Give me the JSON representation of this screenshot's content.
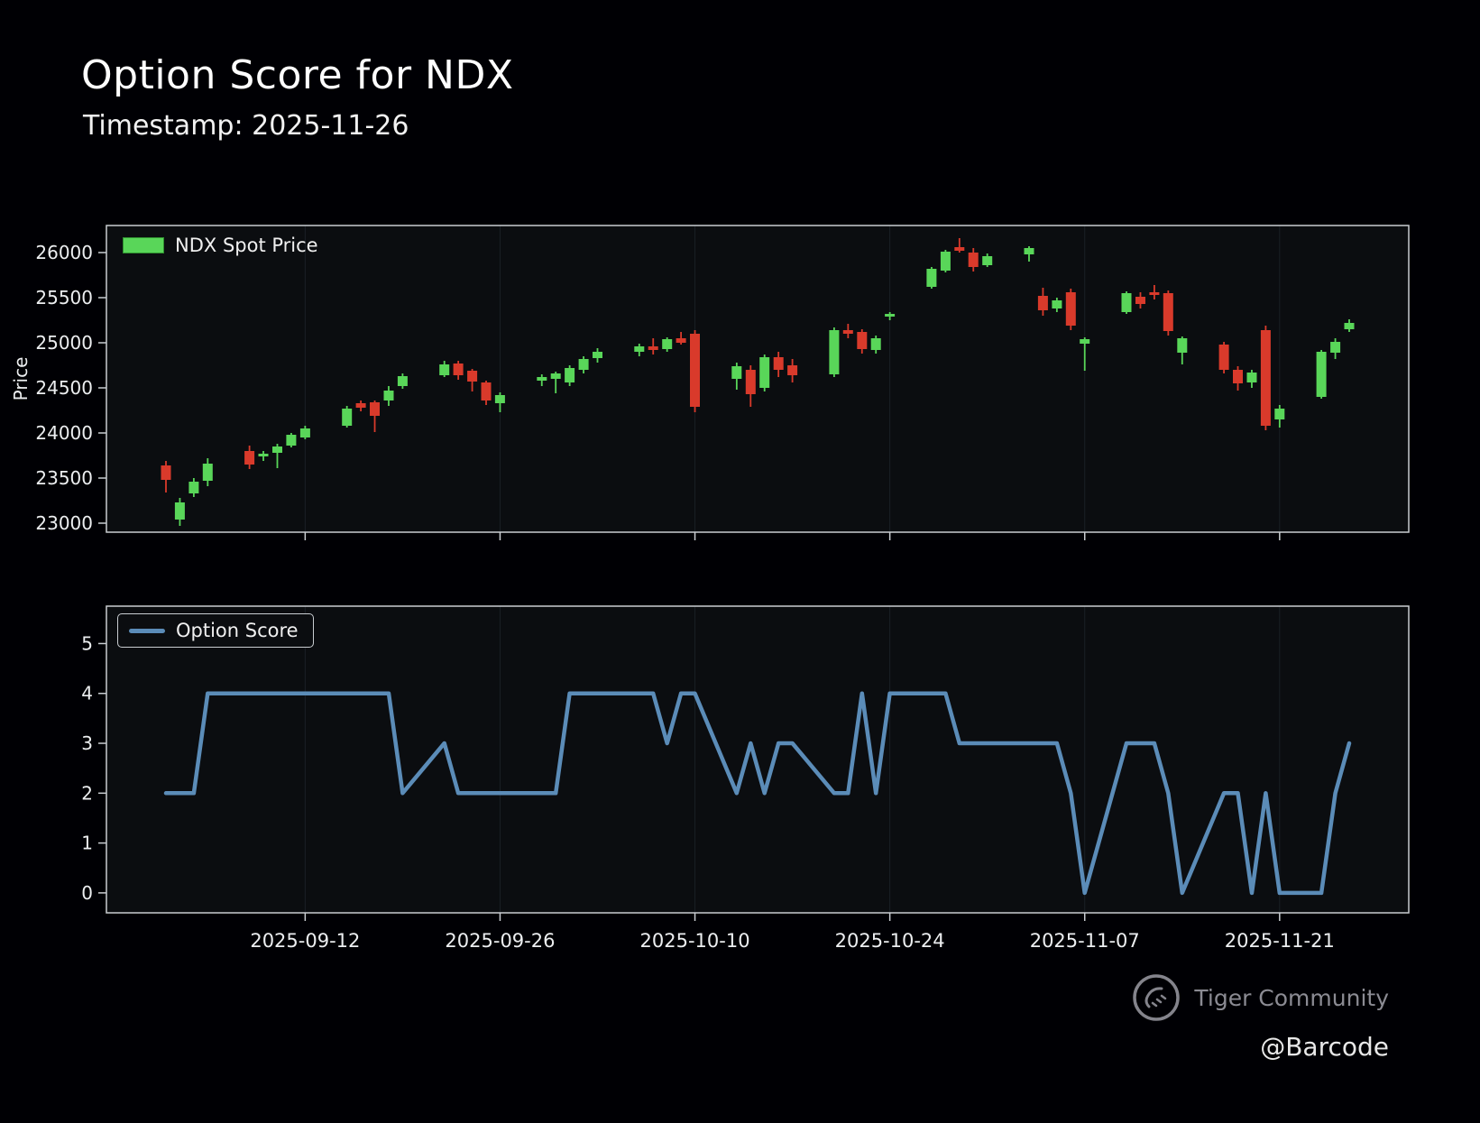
{
  "header": {
    "title": "Option Score for NDX",
    "subtitle": "Timestamp: 2025-11-26"
  },
  "watermark": {
    "community": "Tiger Community",
    "handle": "@Barcode"
  },
  "x_axis": {
    "tick_labels": [
      "2025-09-12",
      "2025-09-26",
      "2025-10-10",
      "2025-10-24",
      "2025-11-07",
      "2025-11-21"
    ]
  },
  "chart_data": [
    {
      "type": "candlestick",
      "name": "NDX Spot Price",
      "legend": "NDX Spot Price",
      "ylabel": "Price",
      "ylim": [
        22900,
        26300
      ],
      "yticks": [
        23000,
        23500,
        24000,
        24500,
        25000,
        25500,
        26000
      ],
      "up_color": "#59d659",
      "down_color": "#d93a2b",
      "grid": "vertical-faint",
      "candles": [
        [
          "2025-09-02",
          23640,
          23690,
          23340,
          23480
        ],
        [
          "2025-09-03",
          23040,
          23280,
          22970,
          23230
        ],
        [
          "2025-09-04",
          23330,
          23500,
          23290,
          23460
        ],
        [
          "2025-09-05",
          23470,
          23720,
          23410,
          23660
        ],
        [
          "2025-09-08",
          23800,
          23860,
          23600,
          23650
        ],
        [
          "2025-09-09",
          23740,
          23800,
          23690,
          23770
        ],
        [
          "2025-09-10",
          23780,
          23880,
          23610,
          23850
        ],
        [
          "2025-09-11",
          23860,
          24000,
          23840,
          23980
        ],
        [
          "2025-09-12",
          23950,
          24080,
          23930,
          24050
        ],
        [
          "2025-09-15",
          24080,
          24300,
          24060,
          24270
        ],
        [
          "2025-09-16",
          24330,
          24360,
          24240,
          24280
        ],
        [
          "2025-09-17",
          24340,
          24360,
          24010,
          24190
        ],
        [
          "2025-09-18",
          24360,
          24520,
          24300,
          24470
        ],
        [
          "2025-09-19",
          24520,
          24660,
          24490,
          24630
        ],
        [
          "2025-09-22",
          24640,
          24800,
          24620,
          24760
        ],
        [
          "2025-09-23",
          24770,
          24800,
          24590,
          24640
        ],
        [
          "2025-09-24",
          24690,
          24710,
          24460,
          24570
        ],
        [
          "2025-09-25",
          24560,
          24580,
          24310,
          24360
        ],
        [
          "2025-09-26",
          24330,
          24450,
          24230,
          24420
        ],
        [
          "2025-09-29",
          24580,
          24650,
          24520,
          24620
        ],
        [
          "2025-09-30",
          24600,
          24680,
          24440,
          24660
        ],
        [
          "2025-10-01",
          24560,
          24750,
          24520,
          24720
        ],
        [
          "2025-10-02",
          24700,
          24850,
          24660,
          24820
        ],
        [
          "2025-10-03",
          24830,
          24940,
          24780,
          24900
        ],
        [
          "2025-10-06",
          24900,
          24990,
          24850,
          24960
        ],
        [
          "2025-10-07",
          24960,
          25050,
          24870,
          24920
        ],
        [
          "2025-10-08",
          24930,
          25060,
          24900,
          25040
        ],
        [
          "2025-10-09",
          25050,
          25120,
          24980,
          25000
        ],
        [
          "2025-10-10",
          25100,
          25140,
          24230,
          24290
        ],
        [
          "2025-10-13",
          24600,
          24780,
          24480,
          24740
        ],
        [
          "2025-10-14",
          24700,
          24750,
          24290,
          24430
        ],
        [
          "2025-10-15",
          24500,
          24870,
          24460,
          24840
        ],
        [
          "2025-10-16",
          24840,
          24900,
          24620,
          24700
        ],
        [
          "2025-10-17",
          24750,
          24820,
          24560,
          24640
        ],
        [
          "2025-10-20",
          24650,
          25170,
          24620,
          25140
        ],
        [
          "2025-10-21",
          25140,
          25210,
          25050,
          25100
        ],
        [
          "2025-10-22",
          25120,
          25150,
          24880,
          24930
        ],
        [
          "2025-10-23",
          24920,
          25080,
          24880,
          25050
        ],
        [
          "2025-10-24",
          25290,
          25340,
          25250,
          25320
        ],
        [
          "2025-10-27",
          25620,
          25840,
          25600,
          25820
        ],
        [
          "2025-10-28",
          25800,
          26030,
          25780,
          26010
        ],
        [
          "2025-10-29",
          26060,
          26160,
          26000,
          26020
        ],
        [
          "2025-10-30",
          26000,
          26050,
          25790,
          25840
        ],
        [
          "2025-10-31",
          25860,
          25990,
          25840,
          25960
        ],
        [
          "2025-11-03",
          25980,
          26070,
          25900,
          26050
        ],
        [
          "2025-11-04",
          25520,
          25610,
          25300,
          25360
        ],
        [
          "2025-11-05",
          25380,
          25500,
          25340,
          25470
        ],
        [
          "2025-11-06",
          25560,
          25600,
          25140,
          25190
        ],
        [
          "2025-11-07",
          24990,
          25060,
          24690,
          25040
        ],
        [
          "2025-11-10",
          25340,
          25570,
          25320,
          25550
        ],
        [
          "2025-11-11",
          25510,
          25560,
          25380,
          25430
        ],
        [
          "2025-11-12",
          25560,
          25640,
          25480,
          25530
        ],
        [
          "2025-11-13",
          25550,
          25580,
          25080,
          25130
        ],
        [
          "2025-11-14",
          24890,
          25070,
          24760,
          25050
        ],
        [
          "2025-11-17",
          24980,
          25010,
          24660,
          24700
        ],
        [
          "2025-11-18",
          24700,
          24740,
          24470,
          24550
        ],
        [
          "2025-11-19",
          24560,
          24700,
          24500,
          24670
        ],
        [
          "2025-11-20",
          25140,
          25190,
          24030,
          24080
        ],
        [
          "2025-11-21",
          24150,
          24310,
          24060,
          24270
        ],
        [
          "2025-11-24",
          24400,
          24920,
          24380,
          24900
        ],
        [
          "2025-11-25",
          24890,
          25050,
          24820,
          25010
        ],
        [
          "2025-11-26",
          25150,
          25260,
          25120,
          25220
        ]
      ]
    },
    {
      "type": "line",
      "name": "Option Score",
      "legend": "Option Score",
      "ylabel": "",
      "ylim": [
        -0.4,
        5.75
      ],
      "yticks": [
        0,
        1,
        2,
        3,
        4,
        5
      ],
      "color": "#5b8cb8",
      "x_note": "same trading dates as candlestick series",
      "values": [
        2,
        2,
        2,
        4,
        4,
        4,
        4,
        4,
        4,
        4,
        4,
        4,
        4,
        2,
        3,
        2,
        2,
        2,
        2,
        2,
        2,
        4,
        4,
        4,
        4,
        4,
        3,
        4,
        4,
        2,
        3,
        2,
        3,
        3,
        2,
        2,
        4,
        2,
        4,
        4,
        4,
        3,
        3,
        3,
        3,
        3,
        3,
        2,
        0,
        3,
        3,
        3,
        2,
        0,
        2,
        2,
        0,
        2,
        0,
        0,
        2,
        3
      ]
    }
  ]
}
